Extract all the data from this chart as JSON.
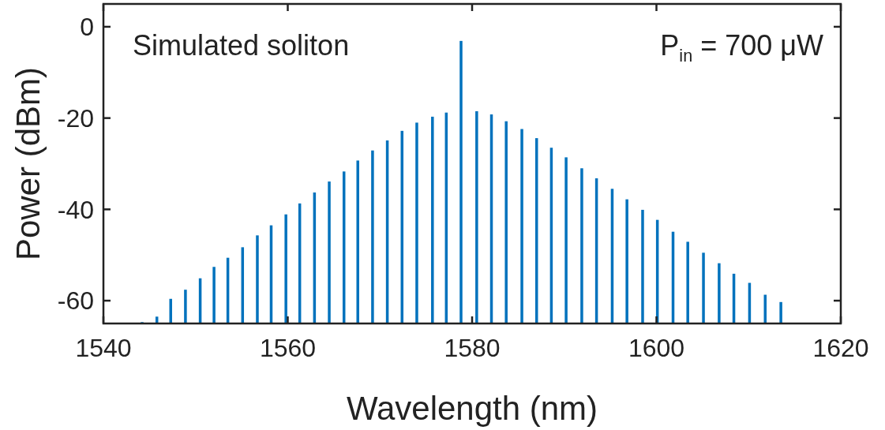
{
  "chart_data": {
    "type": "bar",
    "xlabel": "Wavelength (nm)",
    "ylabel": "Power (dBm)",
    "annotations": [
      "Simulated soliton",
      "P$_{in}$ = 700 μW"
    ],
    "x": [
      1544.2,
      1545.8,
      1547.3,
      1548.9,
      1550.5,
      1552.0,
      1553.5,
      1555.1,
      1556.7,
      1558.2,
      1559.8,
      1561.3,
      1562.9,
      1564.5,
      1566.1,
      1567.6,
      1569.2,
      1570.8,
      1572.4,
      1574.0,
      1575.7,
      1577.2,
      1578.8,
      1580.5,
      1582.1,
      1583.7,
      1585.4,
      1587.0,
      1588.6,
      1590.2,
      1591.9,
      1593.5,
      1595.2,
      1596.8,
      1598.5,
      1600.1,
      1601.8,
      1603.4,
      1605.1,
      1606.8,
      1608.4,
      1610.1,
      1611.8,
      1613.5
    ],
    "base": [
      -65,
      -65,
      -65,
      -65,
      -65,
      -65,
      -65,
      -65,
      -65,
      -65,
      -65,
      -65,
      -65,
      -65,
      -65,
      -65,
      -65,
      -65,
      -65,
      -65,
      -65,
      -65,
      -65,
      -65,
      -65,
      -65,
      -65,
      -65,
      -65,
      -65,
      -65,
      -65,
      -65,
      -65,
      -65,
      -65,
      -65,
      -65,
      -65,
      -65,
      -65,
      -65,
      -65,
      -65
    ],
    "values": [
      0.3,
      1.5,
      5.4,
      7.4,
      9.9,
      12.4,
      14.4,
      16.7,
      19.3,
      21.5,
      23.9,
      26.3,
      28.7,
      31.1,
      33.3,
      35.7,
      37.9,
      40.1,
      42.2,
      44.0,
      45.3,
      46.2,
      61.9,
      46.5,
      45.8,
      44.3,
      42.6,
      40.6,
      38.5,
      36.4,
      34.0,
      31.8,
      29.5,
      27.2,
      24.9,
      22.7,
      20.1,
      17.9,
      15.5,
      13.2,
      10.9,
      8.9,
      6.3,
      4.7
    ],
    "color": "#0072bd",
    "xlim": [
      1540,
      1620
    ],
    "ylim": [
      -65,
      5
    ],
    "xticks": [
      1540,
      1560,
      1580,
      1600,
      1620
    ],
    "yticks": [
      -60,
      -40,
      -20,
      0
    ],
    "grid": false
  }
}
